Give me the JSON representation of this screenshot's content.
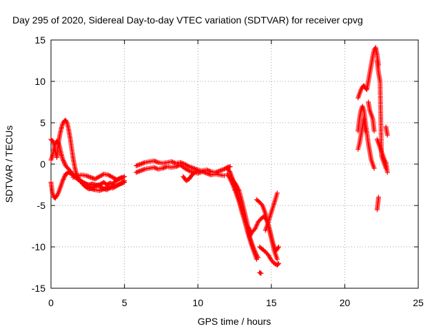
{
  "chart_data": {
    "type": "scatter",
    "title": "Day 295 of 2020, Sidereal Day-to-day VTEC variation (SDTVAR) for receiver cpvg",
    "xlabel": "GPS time / hours",
    "ylabel": "SDTVAR / TECUs",
    "xlim": [
      0,
      25
    ],
    "ylim": [
      -15,
      15
    ],
    "xticks": [
      0,
      5,
      10,
      15,
      20,
      25
    ],
    "yticks": [
      -15,
      -10,
      -5,
      0,
      5,
      10,
      15
    ],
    "grid": true,
    "marker": "+",
    "color": "#ff0000",
    "series": [
      {
        "name": "SDTVAR",
        "segments": [
          {
            "x": [
              0.0,
              0.1,
              0.2,
              0.3,
              0.4,
              0.5,
              0.6,
              0.7,
              0.8,
              0.9,
              1.0,
              1.1,
              1.2,
              1.3,
              1.4,
              1.5,
              1.6,
              1.7,
              1.8,
              1.9,
              2.0,
              2.2,
              2.4,
              2.6,
              2.8,
              3.0,
              3.2,
              3.4,
              3.6,
              3.8,
              4.0,
              4.2,
              4.4,
              4.6,
              4.8,
              5.0
            ],
            "y": [
              3.0,
              2.8,
              2.5,
              1.5,
              0.8,
              2.5,
              3.5,
              4.3,
              4.9,
              5.2,
              5.3,
              5.0,
              4.2,
              3.2,
              2.0,
              0.8,
              -0.2,
              -1.0,
              -1.5,
              -1.8,
              -2.0,
              -2.2,
              -2.4,
              -2.5,
              -2.4,
              -2.5,
              -2.6,
              -2.4,
              -2.2,
              -2.5,
              -2.3,
              -2.4,
              -2.0,
              -1.8,
              -1.7,
              -1.5
            ]
          },
          {
            "x": [
              0.0,
              0.1,
              0.2,
              0.3,
              0.4,
              0.5,
              0.6,
              0.7,
              0.8,
              0.9,
              1.0,
              1.2,
              1.4,
              1.6,
              1.8,
              2.0,
              2.2,
              2.4,
              2.6,
              2.8,
              3.0,
              3.3,
              3.6,
              3.9,
              4.2,
              4.5,
              4.8,
              5.0
            ],
            "y": [
              0.5,
              1.0,
              1.8,
              2.5,
              2.8,
              2.6,
              2.0,
              1.2,
              0.6,
              0.2,
              -0.2,
              -0.6,
              -1.0,
              -1.5,
              -1.8,
              -2.0,
              -2.3,
              -2.5,
              -2.8,
              -3.0,
              -3.1,
              -3.2,
              -3.0,
              -2.8,
              -2.9,
              -2.6,
              -2.3,
              -2.0
            ]
          },
          {
            "x": [
              0.0,
              0.1,
              0.2,
              0.3,
              0.4,
              0.5,
              0.6,
              0.7,
              0.8,
              0.9,
              1.0,
              1.2,
              1.4,
              1.6,
              1.8,
              2.0,
              2.2,
              2.4,
              2.6,
              2.8,
              3.0,
              3.2,
              3.5,
              3.8,
              4.1,
              4.4,
              4.7,
              5.0
            ],
            "y": [
              -2.2,
              -3.5,
              -4.0,
              -4.1,
              -3.8,
              -3.5,
              -3.0,
              -2.5,
              -2.0,
              -1.6,
              -1.2,
              -1.0,
              -1.2,
              -1.5,
              -1.8,
              -2.1,
              -2.5,
              -2.8,
              -3.0,
              -2.9,
              -2.7,
              -2.5,
              -2.9,
              -3.1,
              -2.8,
              -2.6,
              -2.4,
              -2.2
            ]
          },
          {
            "x": [
              1.5,
              1.8,
              2.1,
              2.4,
              2.7,
              3.0,
              3.3,
              3.6,
              3.9,
              4.2,
              4.5,
              4.8
            ],
            "y": [
              -1.6,
              -1.4,
              -1.3,
              -1.4,
              -1.6,
              -1.8,
              -1.5,
              -1.2,
              -1.3,
              -1.6,
              -1.9,
              -1.6
            ]
          },
          {
            "x": [
              5.8,
              6.1,
              6.4,
              6.7,
              7.0,
              7.3,
              7.6,
              7.9,
              8.2,
              8.5,
              8.8,
              9.1,
              9.4,
              9.7,
              10.0,
              10.3,
              10.6,
              10.9,
              11.2,
              11.5,
              11.8,
              12.0,
              12.2
            ],
            "y": [
              -0.2,
              0.0,
              0.2,
              0.3,
              0.4,
              0.2,
              0.1,
              0.2,
              0.3,
              0.1,
              0.2,
              0.0,
              -0.3,
              -0.5,
              -0.7,
              -0.8,
              -0.7,
              -0.9,
              -1.0,
              -0.8,
              -0.6,
              -0.4,
              -0.3
            ]
          },
          {
            "x": [
              5.8,
              6.1,
              6.4,
              6.7,
              7.0,
              7.3,
              7.6,
              7.9,
              8.2,
              8.5,
              8.8,
              9.1,
              9.4,
              9.7,
              10.0,
              10.3,
              10.6,
              10.9,
              11.2,
              11.5,
              11.8
            ],
            "y": [
              -1.0,
              -0.8,
              -0.6,
              -0.5,
              -0.4,
              -0.6,
              -0.5,
              -0.3,
              -0.4,
              -0.3,
              -0.1,
              -0.5,
              -0.8,
              -1.0,
              -1.1,
              -0.9,
              -1.1,
              -1.3,
              -1.2,
              -1.3,
              -1.4
            ]
          },
          {
            "x": [
              9.0,
              9.2,
              9.4,
              9.6,
              9.8,
              10.0
            ],
            "y": [
              -1.5,
              -2.0,
              -1.8,
              -1.3,
              -1.0,
              -0.8
            ]
          },
          {
            "x": [
              12.0,
              12.2,
              12.4,
              12.6,
              12.8,
              13.0,
              13.2,
              13.4,
              13.6,
              13.8,
              14.0,
              14.1
            ],
            "y": [
              -0.5,
              -1.0,
              -2.0,
              -3.0,
              -4.2,
              -5.5,
              -6.8,
              -8.0,
              -9.2,
              -10.2,
              -11.0,
              -11.3
            ]
          },
          {
            "x": [
              12.0,
              12.2,
              12.4,
              12.6,
              12.8,
              13.0,
              13.2,
              13.4,
              13.6,
              13.8,
              14.0
            ],
            "y": [
              -1.2,
              -1.8,
              -2.6,
              -3.5,
              -4.5,
              -5.8,
              -7.0,
              -8.3,
              -9.5,
              -10.5,
              -11.5
            ]
          },
          {
            "x": [
              12.2,
              12.4,
              12.6,
              12.8,
              13.0,
              13.2,
              13.4,
              13.6
            ],
            "y": [
              -1.5,
              -2.0,
              -2.5,
              -3.2,
              -4.5,
              -6.0,
              -7.5,
              -8.2
            ]
          },
          {
            "x": [
              13.5,
              13.7,
              13.9,
              14.1,
              14.3,
              14.5,
              14.7,
              14.9,
              15.1,
              15.3,
              15.5
            ],
            "y": [
              -8.8,
              -8.2,
              -7.8,
              -7.0,
              -6.6,
              -6.3,
              -6.8,
              -8.0,
              -9.5,
              -10.5,
              -10.0
            ]
          },
          {
            "x": [
              14.0,
              14.2,
              14.4,
              14.6,
              14.8,
              15.0,
              15.2,
              15.4
            ],
            "y": [
              -4.3,
              -4.6,
              -5.0,
              -6.0,
              -7.5,
              -9.0,
              -10.5,
              -11.5
            ]
          },
          {
            "x": [
              14.2,
              14.4,
              14.6,
              14.8,
              15.0,
              15.2,
              15.4,
              15.5
            ],
            "y": [
              -10.0,
              -10.3,
              -10.6,
              -11.0,
              -11.6,
              -12.0,
              -12.2,
              -12.0
            ]
          },
          {
            "x": [
              14.6,
              14.8,
              15.0,
              15.2,
              15.4
            ],
            "y": [
              -8.0,
              -7.0,
              -5.8,
              -4.7,
              -3.5
            ]
          },
          {
            "x": [
              14.2,
              14.3
            ],
            "y": [
              -13.1,
              -13.2
            ]
          },
          {
            "x": [
              20.9,
              21.0,
              21.1,
              21.2,
              21.3,
              21.4,
              21.5,
              21.6,
              21.7,
              21.8,
              21.9,
              22.0,
              22.1,
              22.2,
              22.3
            ],
            "y": [
              8.0,
              8.5,
              9.0,
              9.3,
              9.5,
              9.2,
              9.0,
              10.0,
              11.0,
              12.0,
              13.0,
              13.8,
              14.1,
              13.2,
              12.0
            ]
          },
          {
            "x": [
              20.9,
              21.0,
              21.1,
              21.2,
              21.3,
              21.4,
              21.5,
              21.6,
              21.7,
              21.8,
              21.9,
              22.0
            ],
            "y": [
              4.0,
              5.5,
              6.5,
              7.0,
              6.5,
              5.0,
              3.8,
              2.5,
              1.5,
              0.5,
              0.0,
              -0.5
            ]
          },
          {
            "x": [
              20.9,
              21.0,
              21.1,
              21.2,
              21.3,
              21.4
            ],
            "y": [
              1.8,
              2.5,
              3.5,
              4.5,
              5.5,
              4.0
            ]
          },
          {
            "x": [
              21.6,
              21.7,
              21.8,
              21.9,
              22.0
            ],
            "y": [
              7.5,
              6.5,
              6.0,
              5.5,
              4.0
            ]
          },
          {
            "x": [
              22.2,
              22.3,
              22.4,
              22.5,
              22.6,
              22.7,
              22.8
            ],
            "y": [
              12.5,
              11.0,
              10.0,
              1.0,
              0.5,
              0.0,
              -0.5
            ]
          },
          {
            "x": [
              22.2,
              22.3,
              22.4,
              22.5,
              22.6,
              22.7,
              22.8,
              22.9
            ],
            "y": [
              3.0,
              2.5,
              2.0,
              1.5,
              1.0,
              0.5,
              0.2,
              -1.0
            ]
          },
          {
            "x": [
              22.8,
              22.9
            ],
            "y": [
              4.5,
              3.5
            ]
          },
          {
            "x": [
              22.2,
              22.3
            ],
            "y": [
              -5.5,
              -4.0
            ]
          }
        ]
      }
    ]
  }
}
